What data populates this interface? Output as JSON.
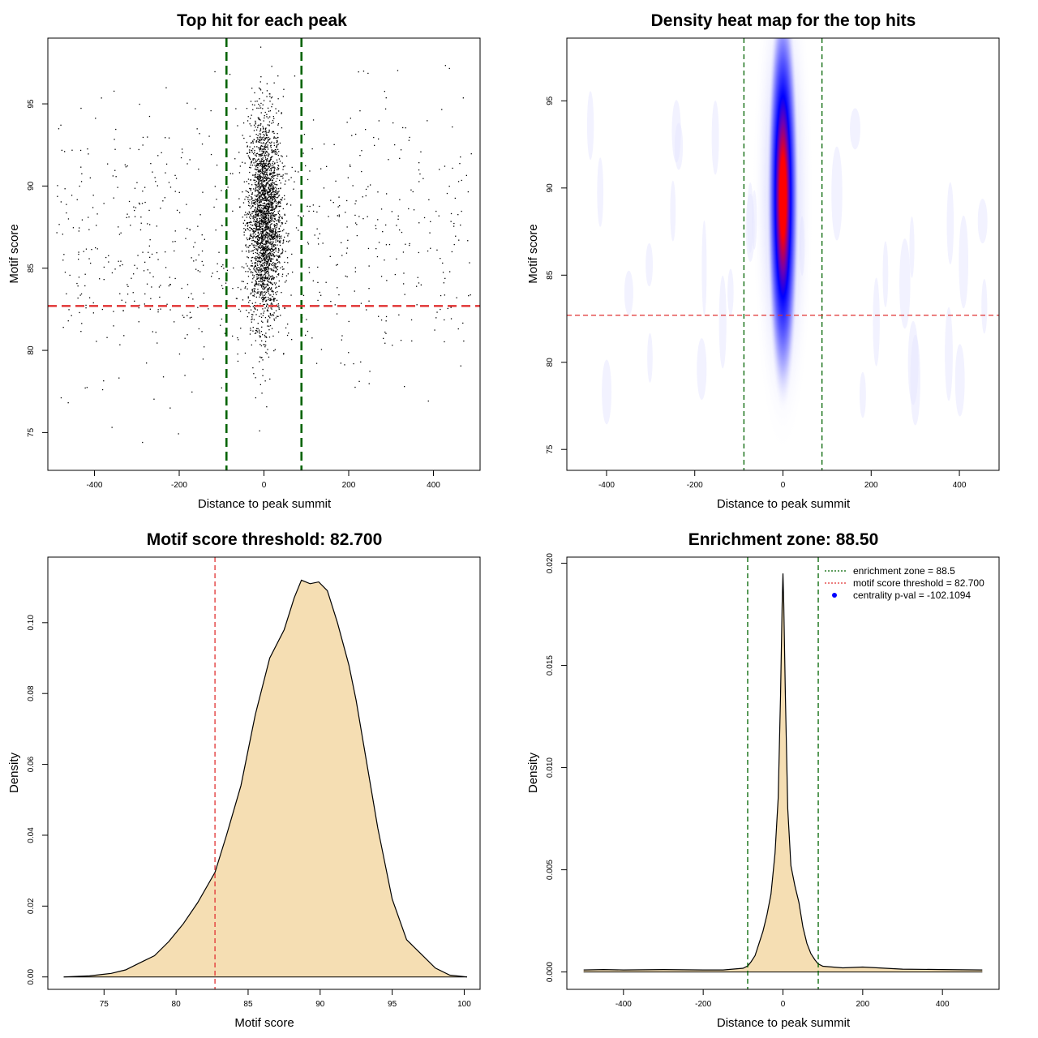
{
  "chart_data": [
    {
      "type": "scatter",
      "title": "Top hit for each peak",
      "xlabel": "Distance to peak summit",
      "ylabel": "Motif score",
      "xlim": [
        -510,
        510
      ],
      "ylim": [
        72.7,
        99.0
      ],
      "xticks": [
        -400,
        -200,
        0,
        200,
        400
      ],
      "yticks": [
        75,
        80,
        85,
        90,
        95
      ],
      "vlines": [
        -88.5,
        88.5
      ],
      "hline": 82.7,
      "vline_color": "#006400",
      "hline_color": "#e03030",
      "point_color": "#000000",
      "points_description_center": {
        "x_sd": 20,
        "y_mean": 88,
        "y_sd": 3.2
      },
      "grid": false
    },
    {
      "type": "heatmap",
      "title": "Density heat map for the top hits",
      "xlabel": "Distance to peak summit",
      "ylabel": "Motif score",
      "xlim": [
        -490,
        490
      ],
      "ylim": [
        73.8,
        98.6
      ],
      "xticks": [
        -400,
        -200,
        0,
        200,
        400
      ],
      "yticks": [
        75,
        80,
        85,
        90,
        95
      ],
      "vlines": [
        -88.5,
        88.5
      ],
      "hline": 82.7,
      "density_peak": {
        "x": 0,
        "y": 89.5
      },
      "colors": [
        "#ffffff",
        "#0000ff",
        "#ff0000"
      ],
      "grid": false
    },
    {
      "type": "area",
      "title": "Motif score threshold: 82.700",
      "xlabel": "Motif score",
      "ylabel": "Density",
      "xlim": [
        71.1,
        101.1
      ],
      "ylim": [
        -0.0035,
        0.1185
      ],
      "xticks": [
        75,
        80,
        85,
        90,
        95,
        100
      ],
      "yticks": [
        0.0,
        0.02,
        0.04,
        0.06,
        0.08,
        0.1
      ],
      "ytick_labels": [
        "0.00",
        "0.02",
        "0.04",
        "0.06",
        "0.08",
        "0.10"
      ],
      "vline": 82.7,
      "fill": "#f5deb3",
      "x": [
        72.2,
        74,
        75.5,
        76.5,
        77.5,
        78.5,
        79.5,
        80.5,
        81.5,
        82.7,
        83.5,
        84.5,
        85.5,
        86.5,
        87.5,
        88.2,
        88.7,
        89.3,
        89.9,
        90.5,
        91.2,
        92,
        92.5,
        93,
        94,
        95,
        96,
        97,
        98,
        99,
        100.2
      ],
      "y": [
        0.0,
        0.0003,
        0.001,
        0.002,
        0.004,
        0.006,
        0.01,
        0.015,
        0.021,
        0.0295,
        0.04,
        0.054,
        0.074,
        0.09,
        0.098,
        0.107,
        0.112,
        0.111,
        0.1115,
        0.109,
        0.1,
        0.088,
        0.078,
        0.066,
        0.042,
        0.022,
        0.0105,
        0.0065,
        0.0025,
        0.0005,
        0.0
      ],
      "grid": false
    },
    {
      "type": "area",
      "title": "Enrichment zone: 88.50",
      "xlabel": "Distance to peak summit",
      "ylabel": "Density",
      "xlim": [
        -542,
        542
      ],
      "ylim": [
        -0.00085,
        0.0203
      ],
      "xticks": [
        -400,
        -200,
        0,
        200,
        400
      ],
      "yticks": [
        0.0,
        0.005,
        0.01,
        0.015,
        0.02
      ],
      "ytick_labels": [
        "0.000",
        "0.005",
        "0.010",
        "0.015",
        "0.020"
      ],
      "vlines": [
        -88.5,
        88.5
      ],
      "fill": "#f5deb3",
      "x": [
        -500,
        -450,
        -400,
        -300,
        -200,
        -150,
        -100,
        -88,
        -80,
        -70,
        -60,
        -50,
        -40,
        -30,
        -20,
        -12,
        -6,
        -2,
        0,
        2,
        6,
        12,
        20,
        30,
        40,
        50,
        60,
        70,
        80,
        88,
        100,
        150,
        200,
        300,
        400,
        500
      ],
      "y": [
        0.0001,
        0.00012,
        0.0001,
        0.00012,
        0.0001,
        0.0001,
        0.00018,
        0.0003,
        0.0005,
        0.0008,
        0.0014,
        0.002,
        0.0028,
        0.0038,
        0.0058,
        0.0085,
        0.0135,
        0.018,
        0.0195,
        0.018,
        0.0135,
        0.008,
        0.0052,
        0.0042,
        0.0034,
        0.0022,
        0.0014,
        0.0009,
        0.0006,
        0.0004,
        0.00028,
        0.0002,
        0.00024,
        0.00014,
        0.00012,
        0.0001
      ],
      "legend": [
        {
          "label": "enrichment zone = 88.5",
          "color": "#006400",
          "symbol": "line"
        },
        {
          "label": "motif score threshold = 82.700",
          "color": "#e03030",
          "symbol": "line"
        },
        {
          "label": "centrality p-val = -102.1094",
          "color": "#0000ff",
          "symbol": "dot"
        }
      ],
      "legend_position": "top-right",
      "grid": false
    }
  ]
}
